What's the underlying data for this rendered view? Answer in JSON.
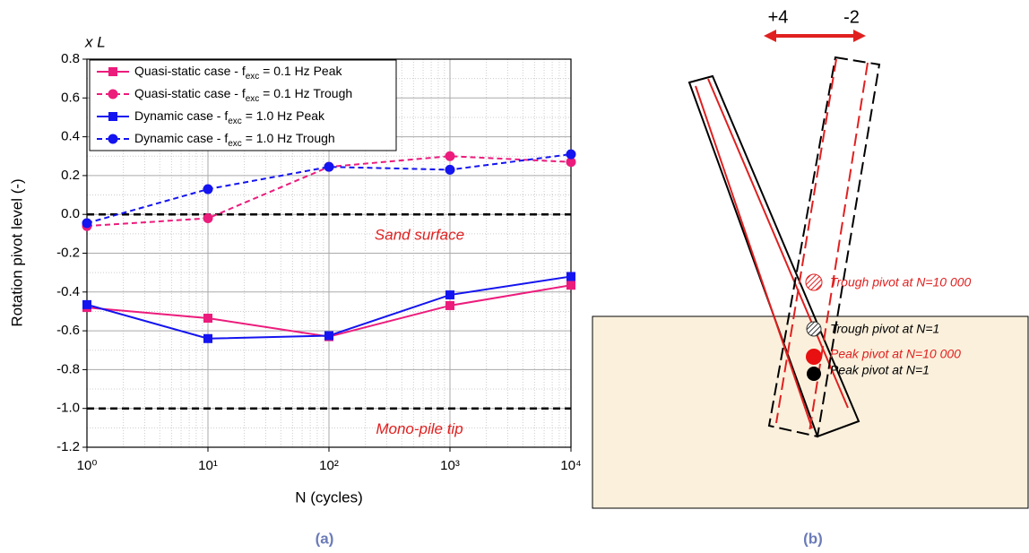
{
  "chart_data": {
    "type": "line",
    "x_unit_label": "x L",
    "x_label": "N (cycles)",
    "y_label": "Rotation pivot level (-)",
    "caption": "(a)",
    "x": [
      1,
      10,
      100,
      1000,
      10000
    ],
    "xscale": "log",
    "xlim": [
      1,
      10000
    ],
    "xticks": [
      {
        "value": 1,
        "label": "10⁰"
      },
      {
        "value": 10,
        "label": "10¹"
      },
      {
        "value": 100,
        "label": "10²"
      },
      {
        "value": 1000,
        "label": "10³"
      },
      {
        "value": 10000,
        "label": "10⁴"
      }
    ],
    "ylim": [
      -1.2,
      0.8
    ],
    "yticks": [
      {
        "value": -1.2,
        "label": "-1.2"
      },
      {
        "value": -1,
        "label": "-1.0"
      },
      -0.8,
      -0.6,
      -0.4,
      -0.2,
      {
        "value": 0,
        "label": "0.0"
      },
      0.2,
      0.4,
      0.6,
      0.8
    ],
    "grid": true,
    "minor_grid": true,
    "legend": "top-left",
    "series": [
      {
        "name": "Quasi-static case - f_exc = 0.1 Hz Peak",
        "color": "#ec1c7c",
        "dash": false,
        "marker": "square",
        "values": [
          -0.48,
          -0.535,
          -0.63,
          -0.47,
          -0.365
        ]
      },
      {
        "name": "Quasi-static case - f_exc = 0.1 Hz Trough",
        "color": "#ec1c7c",
        "dash": true,
        "marker": "circle",
        "values": [
          -0.06,
          -0.02,
          0.245,
          0.3,
          0.27
        ]
      },
      {
        "name": "Dynamic case - f_exc = 1.0 Hz Peak",
        "color": "#1414f0",
        "dash": false,
        "marker": "square",
        "values": [
          -0.465,
          -0.64,
          -0.625,
          -0.415,
          -0.32
        ]
      },
      {
        "name": "Dynamic case - f_exc = 1.0 Hz Trough",
        "color": "#1414f0",
        "dash": true,
        "marker": "circle",
        "values": [
          -0.045,
          0.13,
          0.245,
          0.23,
          0.31
        ]
      }
    ],
    "reference_lines": [
      {
        "value": 0,
        "label": "Sand surface"
      },
      {
        "value": -1,
        "label": "Mono-pile tip"
      }
    ]
  },
  "diagram": {
    "arrow_left": "+4",
    "arrow_right": "-2",
    "caption": "(b)",
    "pivots": [
      "Trough pivot at N=10 000",
      "Trough pivot at N=1",
      "Peak pivot at N=10 000",
      "Peak pivot at N=1"
    ]
  }
}
